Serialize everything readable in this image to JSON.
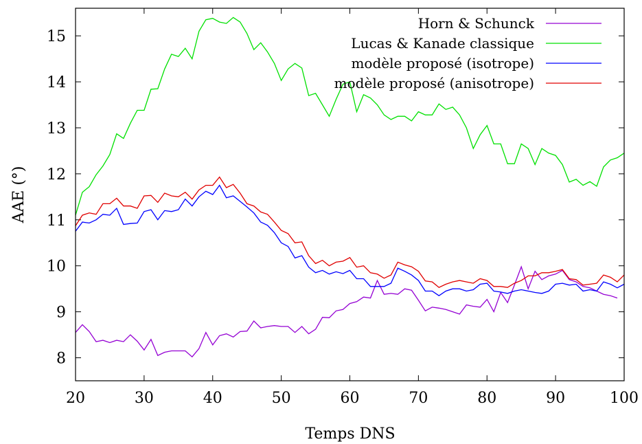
{
  "chart_data": {
    "type": "line",
    "title": "",
    "xlabel": "Temps DNS",
    "ylabel": "AAE (°)",
    "xlim": [
      20,
      100
    ],
    "ylim": [
      7.5,
      15.6
    ],
    "xticks": [
      20,
      30,
      40,
      50,
      60,
      70,
      80,
      90,
      100
    ],
    "xtick_labels": [
      "20",
      "30",
      "40",
      "50",
      "60",
      "70",
      "80",
      "90",
      "100"
    ],
    "yticks": [
      8,
      9,
      10,
      11,
      12,
      13,
      14,
      15
    ],
    "ytick_labels": [
      "8",
      "9",
      "10",
      "11",
      "12",
      "13",
      "14",
      "15"
    ],
    "grid": false,
    "legend_position": "top-right",
    "series": [
      {
        "name": "Horn & Schunck",
        "color": "#9400d3",
        "x": [
          20,
          21,
          22,
          23,
          24,
          25,
          26,
          27,
          28,
          29,
          30,
          31,
          32,
          33,
          34,
          35,
          36,
          37,
          38,
          39,
          40,
          41,
          42,
          43,
          44,
          45,
          46,
          47,
          48,
          49,
          50,
          51,
          52,
          53,
          54,
          55,
          56,
          57,
          58,
          59,
          60,
          61,
          62,
          63,
          64,
          65,
          66,
          67,
          68,
          69,
          70,
          71,
          72,
          73,
          74,
          75,
          76,
          77,
          78,
          79,
          80,
          81,
          82,
          83,
          84,
          85,
          86,
          87,
          88,
          89,
          90,
          91,
          92,
          93,
          94,
          95,
          96,
          97,
          98,
          99
        ],
        "y": [
          8.55,
          8.72,
          8.57,
          8.35,
          8.38,
          8.33,
          8.38,
          8.35,
          8.5,
          8.36,
          8.17,
          8.4,
          8.05,
          8.12,
          8.15,
          8.15,
          8.15,
          8.02,
          8.2,
          8.55,
          8.28,
          8.48,
          8.52,
          8.45,
          8.57,
          8.58,
          8.8,
          8.65,
          8.68,
          8.7,
          8.68,
          8.68,
          8.55,
          8.68,
          8.52,
          8.62,
          8.88,
          8.87,
          9.02,
          9.05,
          9.18,
          9.22,
          9.32,
          9.3,
          9.68,
          9.38,
          9.4,
          9.38,
          9.5,
          9.47,
          9.25,
          9.02,
          9.1,
          9.08,
          9.05,
          9.0,
          8.95,
          9.15,
          9.12,
          9.1,
          9.27,
          9.0,
          9.42,
          9.2,
          9.58,
          9.98,
          9.5,
          9.88,
          9.7,
          9.78,
          9.82,
          9.9,
          9.7,
          9.65,
          9.55,
          9.52,
          9.45,
          9.38,
          9.35,
          9.3
        ]
      },
      {
        "name": "Lucas & Kanade classique",
        "color": "#00e000",
        "x": [
          20,
          21,
          22,
          23,
          24,
          25,
          26,
          27,
          28,
          29,
          30,
          31,
          32,
          33,
          34,
          35,
          36,
          37,
          38,
          39,
          40,
          41,
          42,
          43,
          44,
          45,
          46,
          47,
          48,
          49,
          50,
          51,
          52,
          53,
          54,
          55,
          56,
          57,
          58,
          59,
          60,
          61,
          62,
          63,
          64,
          65,
          66,
          67,
          68,
          69,
          70,
          71,
          72,
          73,
          74,
          75,
          76,
          77,
          78,
          79,
          80,
          81,
          82,
          83,
          84,
          85,
          86,
          87,
          88,
          89,
          90,
          91,
          92,
          93,
          94,
          95,
          96,
          97,
          98,
          99,
          100
        ],
        "y": [
          11.1,
          11.6,
          11.72,
          11.98,
          12.17,
          12.42,
          12.87,
          12.77,
          13.1,
          13.38,
          13.38,
          13.84,
          13.85,
          14.28,
          14.6,
          14.55,
          14.73,
          14.5,
          15.1,
          15.35,
          15.38,
          15.3,
          15.27,
          15.4,
          15.3,
          15.05,
          14.7,
          14.85,
          14.65,
          14.4,
          14.03,
          14.28,
          14.4,
          14.3,
          13.7,
          13.75,
          13.5,
          13.25,
          13.62,
          13.95,
          14.0,
          13.35,
          13.72,
          13.65,
          13.5,
          13.28,
          13.18,
          13.25,
          13.25,
          13.15,
          13.35,
          13.28,
          13.28,
          13.52,
          13.4,
          13.45,
          13.28,
          13.0,
          12.55,
          12.85,
          13.05,
          12.65,
          12.65,
          12.22,
          12.22,
          12.65,
          12.55,
          12.2,
          12.55,
          12.45,
          12.4,
          12.2,
          11.82,
          11.88,
          11.75,
          11.83,
          11.73,
          12.15,
          12.3,
          12.35,
          12.45
        ]
      },
      {
        "name": "modèle proposé (isotrope)",
        "color": "#0000ff",
        "x": [
          20,
          21,
          22,
          23,
          24,
          25,
          26,
          27,
          28,
          29,
          30,
          31,
          32,
          33,
          34,
          35,
          36,
          37,
          38,
          39,
          40,
          41,
          42,
          43,
          44,
          45,
          46,
          47,
          48,
          49,
          50,
          51,
          52,
          53,
          54,
          55,
          56,
          57,
          58,
          59,
          60,
          61,
          62,
          63,
          64,
          65,
          66,
          67,
          68,
          69,
          70,
          71,
          72,
          73,
          74,
          75,
          76,
          77,
          78,
          79,
          80,
          81,
          82,
          83,
          84,
          85,
          86,
          87,
          88,
          89,
          90,
          91,
          92,
          93,
          94,
          95,
          96,
          97,
          98,
          99,
          100
        ],
        "y": [
          10.75,
          10.95,
          10.93,
          11.0,
          11.12,
          11.1,
          11.25,
          10.9,
          10.92,
          10.93,
          11.18,
          11.22,
          11.0,
          11.2,
          11.18,
          11.22,
          11.45,
          11.3,
          11.5,
          11.62,
          11.55,
          11.75,
          11.48,
          11.52,
          11.4,
          11.28,
          11.15,
          10.95,
          10.88,
          10.72,
          10.5,
          10.42,
          10.17,
          10.22,
          9.97,
          9.85,
          9.9,
          9.82,
          9.87,
          9.83,
          9.9,
          9.72,
          9.72,
          9.55,
          9.55,
          9.55,
          9.62,
          9.95,
          9.88,
          9.8,
          9.68,
          9.45,
          9.45,
          9.35,
          9.45,
          9.5,
          9.5,
          9.45,
          9.48,
          9.6,
          9.62,
          9.45,
          9.43,
          9.4,
          9.45,
          9.48,
          9.45,
          9.42,
          9.4,
          9.45,
          9.6,
          9.62,
          9.58,
          9.6,
          9.45,
          9.48,
          9.45,
          9.65,
          9.6,
          9.52,
          9.6
        ]
      },
      {
        "name": "modèle proposé (anisotrope)",
        "color": "#e00000",
        "x": [
          20,
          21,
          22,
          23,
          24,
          25,
          26,
          27,
          28,
          29,
          30,
          31,
          32,
          33,
          34,
          35,
          36,
          37,
          38,
          39,
          40,
          41,
          42,
          43,
          44,
          45,
          46,
          47,
          48,
          49,
          50,
          51,
          52,
          53,
          54,
          55,
          56,
          57,
          58,
          59,
          60,
          61,
          62,
          63,
          64,
          65,
          66,
          67,
          68,
          69,
          70,
          71,
          72,
          73,
          74,
          75,
          76,
          77,
          78,
          79,
          80,
          81,
          82,
          83,
          84,
          85,
          86,
          87,
          88,
          89,
          90,
          91,
          92,
          93,
          94,
          95,
          96,
          97,
          98,
          99,
          100
        ],
        "y": [
          10.87,
          11.1,
          11.15,
          11.12,
          11.35,
          11.35,
          11.47,
          11.3,
          11.3,
          11.25,
          11.52,
          11.53,
          11.38,
          11.58,
          11.52,
          11.5,
          11.6,
          11.45,
          11.65,
          11.75,
          11.75,
          11.93,
          11.7,
          11.77,
          11.58,
          11.35,
          11.3,
          11.17,
          11.12,
          10.95,
          10.77,
          10.7,
          10.5,
          10.52,
          10.22,
          10.05,
          10.12,
          10.0,
          10.08,
          10.1,
          10.18,
          9.97,
          10.0,
          9.85,
          9.82,
          9.73,
          9.8,
          10.08,
          10.02,
          9.98,
          9.88,
          9.67,
          9.65,
          9.53,
          9.6,
          9.65,
          9.68,
          9.65,
          9.62,
          9.72,
          9.68,
          9.55,
          9.55,
          9.53,
          9.62,
          9.68,
          9.78,
          9.78,
          9.85,
          9.85,
          9.88,
          9.92,
          9.72,
          9.7,
          9.58,
          9.6,
          9.62,
          9.8,
          9.75,
          9.65,
          9.8
        ]
      }
    ]
  }
}
